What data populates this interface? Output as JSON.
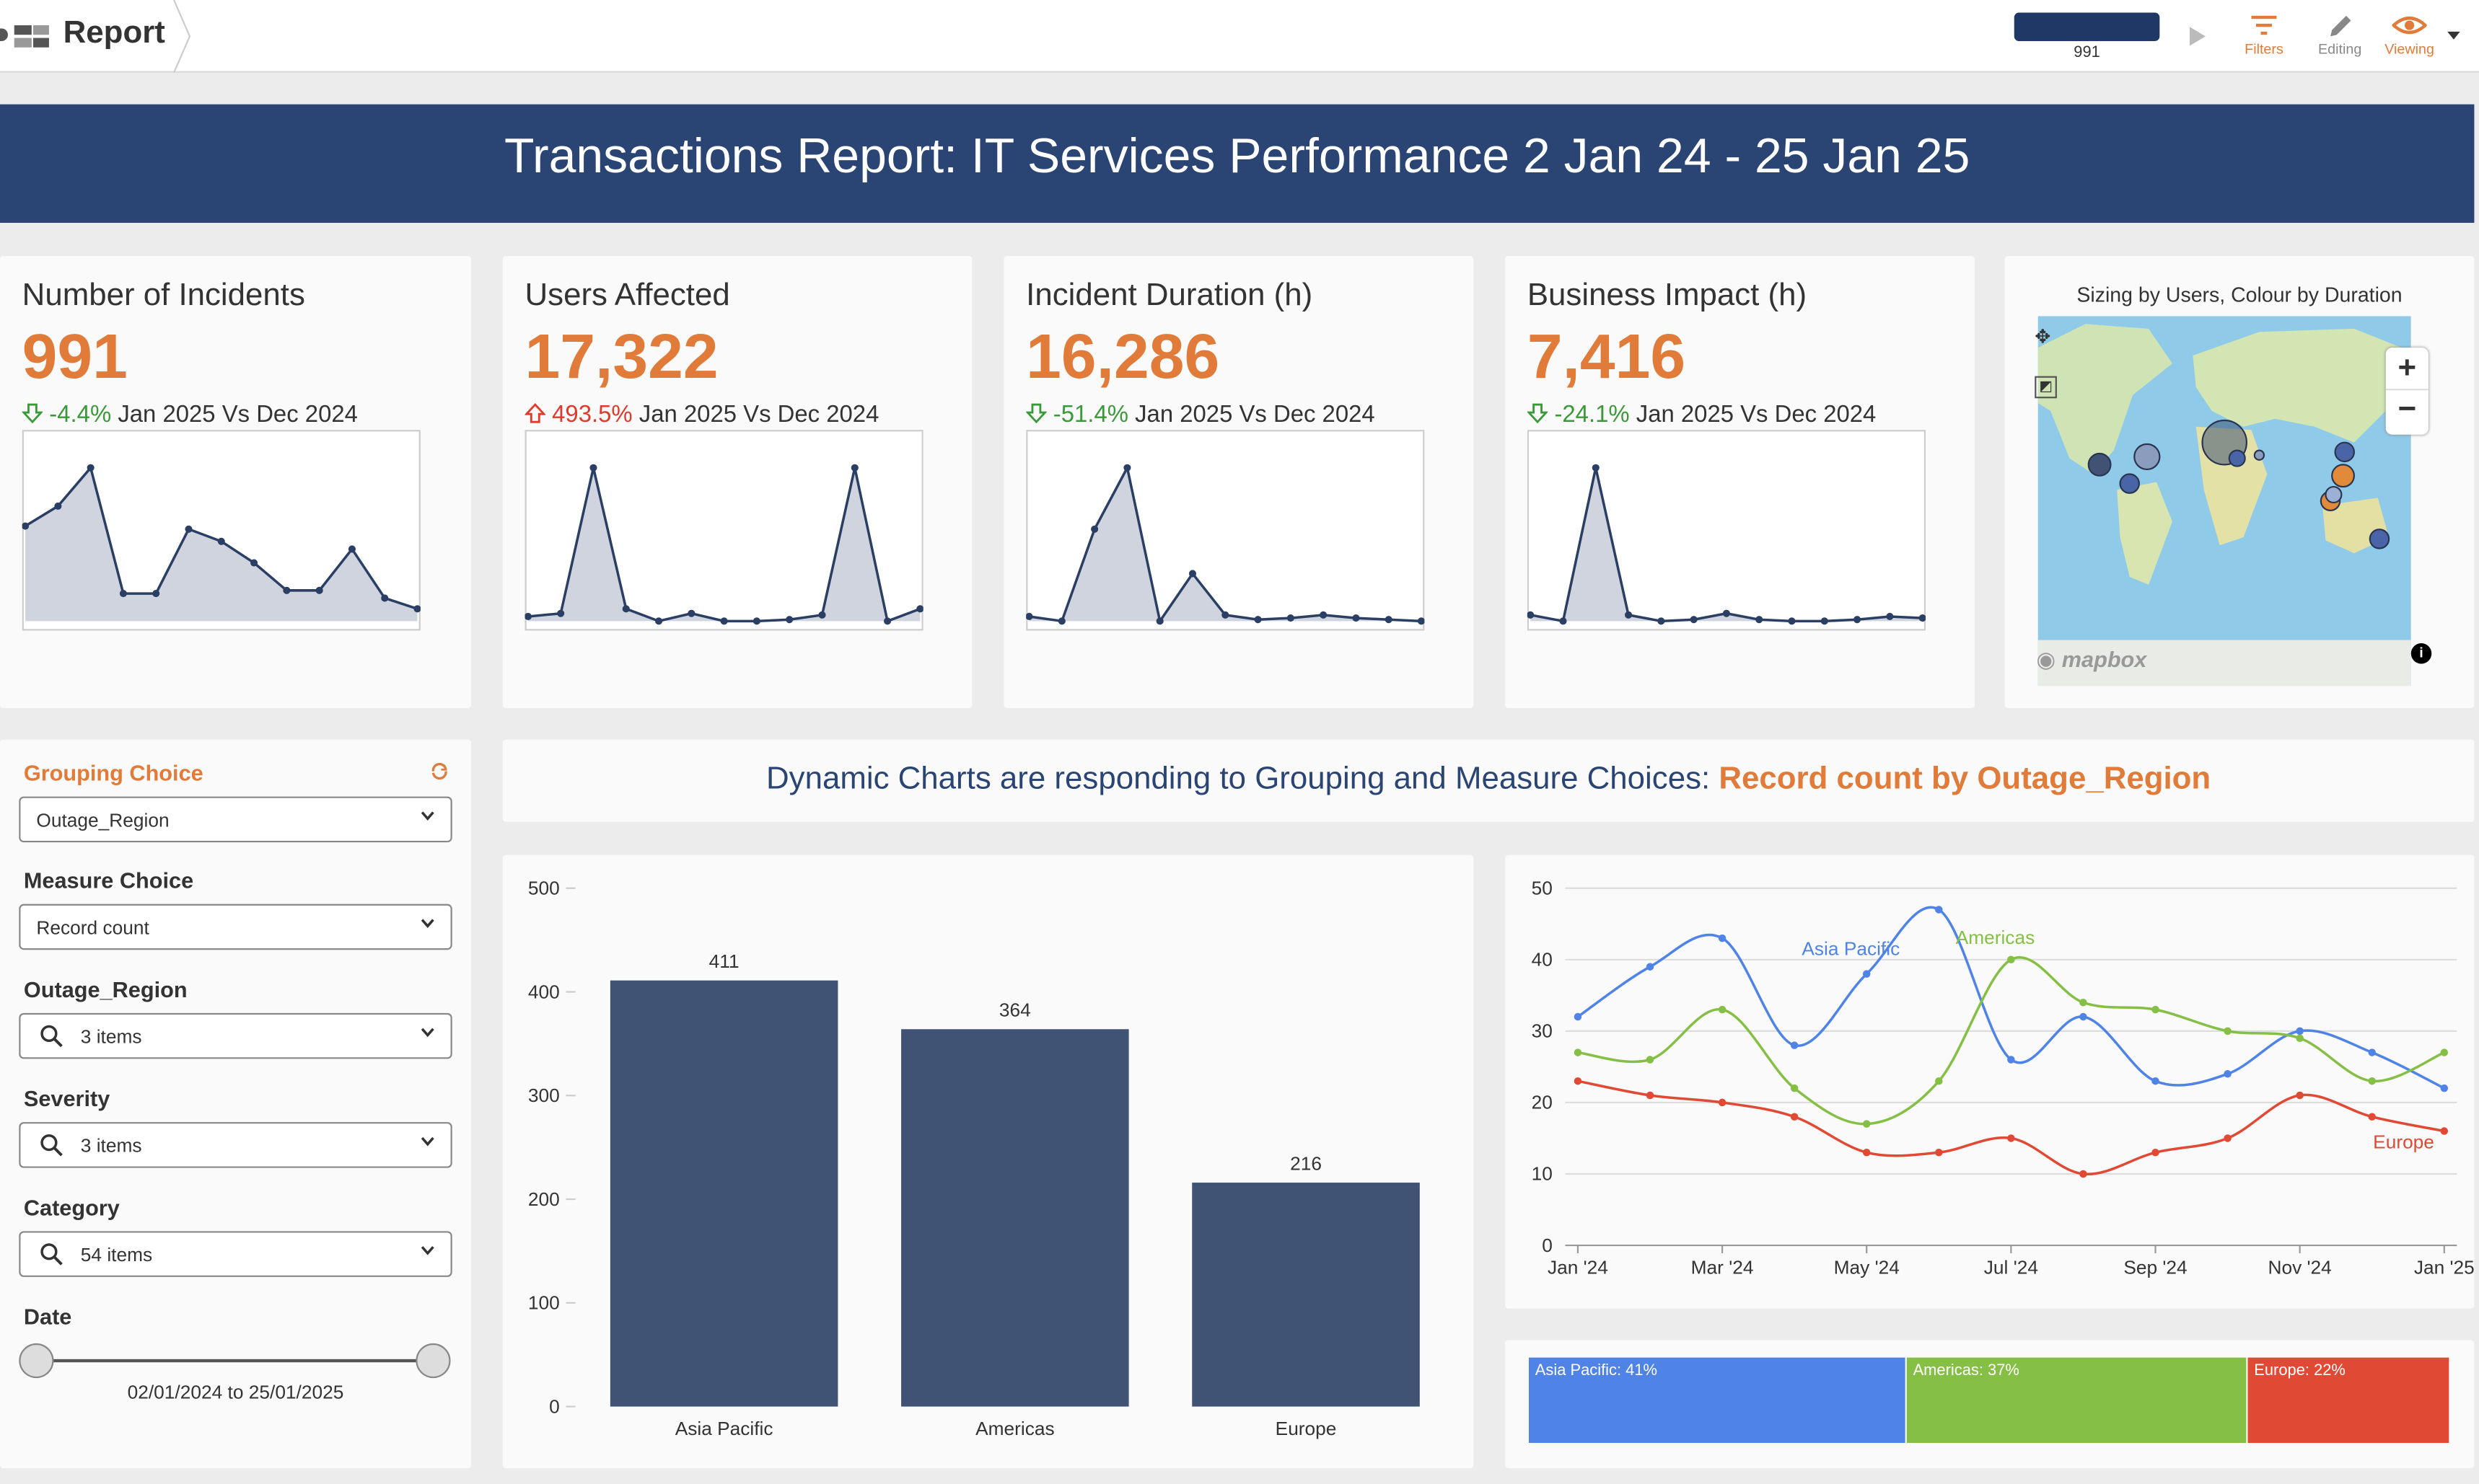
{
  "header": {
    "title": "Report",
    "count": "991",
    "filters": "Filters",
    "editing": "Editing",
    "viewing": "Viewing"
  },
  "banner": {
    "title": "Transactions Report: IT Services Performance 2 Jan 24 - 25 Jan 25"
  },
  "kpis": [
    {
      "title": "Number of Incidents",
      "value": "991",
      "change": "-4.4%",
      "period": "Jan 2025 Vs Dec 2024",
      "direction": "down",
      "spark": [
        0.62,
        0.75,
        1.0,
        0.18,
        0.18,
        0.6,
        0.52,
        0.38,
        0.2,
        0.2,
        0.47,
        0.15,
        0.08
      ]
    },
    {
      "title": "Users Affected",
      "value": "17,322",
      "change": "493.5%",
      "period": "Jan 2025 Vs Dec 2024",
      "direction": "up",
      "spark": [
        0.03,
        0.05,
        1.0,
        0.08,
        -0.05,
        0.05,
        -0.01,
        -0.01,
        0.01,
        0.04,
        1.0,
        -0.04,
        0.08
      ]
    },
    {
      "title": "Incident Duration (h)",
      "value": "16,286",
      "change": "-51.4%",
      "period": "Jan 2025 Vs Dec 2024",
      "direction": "down",
      "spark": [
        0.03,
        0.0,
        0.6,
        1.0,
        0.0,
        0.31,
        0.04,
        0.01,
        0.02,
        0.04,
        0.02,
        0.01,
        -0.01
      ]
    },
    {
      "title": "Business Impact (h)",
      "value": "7,416",
      "change": "-24.1%",
      "period": "Jan 2025 Vs Dec 2024",
      "direction": "down",
      "spark": [
        0.04,
        0.0,
        1.0,
        0.04,
        -0.01,
        0.01,
        0.05,
        0.01,
        -0.02,
        -0.01,
        0.01,
        0.03,
        0.02
      ]
    }
  ],
  "map": {
    "title": "Sizing by Users, Colour by Duration",
    "brand": "mapbox"
  },
  "filters": {
    "grouping_label": "Grouping Choice",
    "grouping_value": "Outage_Region",
    "measure_label": "Measure Choice",
    "measure_value": "Record count",
    "region_label": "Outage_Region",
    "region_value": "3 items",
    "severity_label": "Severity",
    "severity_value": "3 items",
    "category_label": "Category",
    "category_value": "54 items",
    "date_label": "Date",
    "date_range": "02/01/2024 to 25/01/2025"
  },
  "dynamic": {
    "prefix": "Dynamic Charts are responding to Grouping and Measure Choices:",
    "highlight": "Record count by Outage_Region"
  },
  "colors": {
    "accent": "#e07b39",
    "banner": "#2a4574",
    "bar": "#405374",
    "asia": "#4f83e6",
    "americas": "#86bf45",
    "europe": "#e04a35"
  },
  "chart_data": [
    {
      "type": "bar",
      "categories": [
        "Asia Pacific",
        "Americas",
        "Europe"
      ],
      "values": [
        411,
        364,
        216
      ],
      "ylim": [
        0,
        500
      ],
      "yticks": [
        0,
        100,
        200,
        300,
        400,
        500
      ]
    },
    {
      "type": "line",
      "x": [
        "Jan '24",
        "Feb '24",
        "Mar '24",
        "Apr '24",
        "May '24",
        "Jun '24",
        "Jul '24",
        "Aug '24",
        "Sep '24",
        "Oct '24",
        "Nov '24",
        "Dec '24",
        "Jan '25"
      ],
      "series": [
        {
          "name": "Asia Pacific",
          "values": [
            32,
            39,
            43,
            28,
            38,
            47,
            26,
            32,
            23,
            24,
            30,
            27,
            22
          ]
        },
        {
          "name": "Americas",
          "values": [
            27,
            26,
            33,
            22,
            17,
            23,
            40,
            34,
            33,
            30,
            29,
            23,
            27
          ]
        },
        {
          "name": "Europe",
          "values": [
            23,
            21,
            20,
            18,
            13,
            13,
            15,
            10,
            13,
            15,
            21,
            18,
            16
          ]
        }
      ],
      "xticks": [
        "Jan '24",
        "Mar '24",
        "May '24",
        "Jul '24",
        "Sep '24",
        "Nov '24",
        "Jan '25"
      ],
      "ylim": [
        0,
        50
      ],
      "yticks": [
        0,
        10,
        20,
        30,
        40,
        50
      ]
    },
    {
      "type": "bar",
      "orientation": "stacked-horizontal",
      "segments": [
        {
          "label": "Asia Pacific: 41%",
          "share": 41
        },
        {
          "label": "Americas: 37%",
          "share": 37
        },
        {
          "label": "Europe: 22%",
          "share": 22
        }
      ]
    }
  ]
}
